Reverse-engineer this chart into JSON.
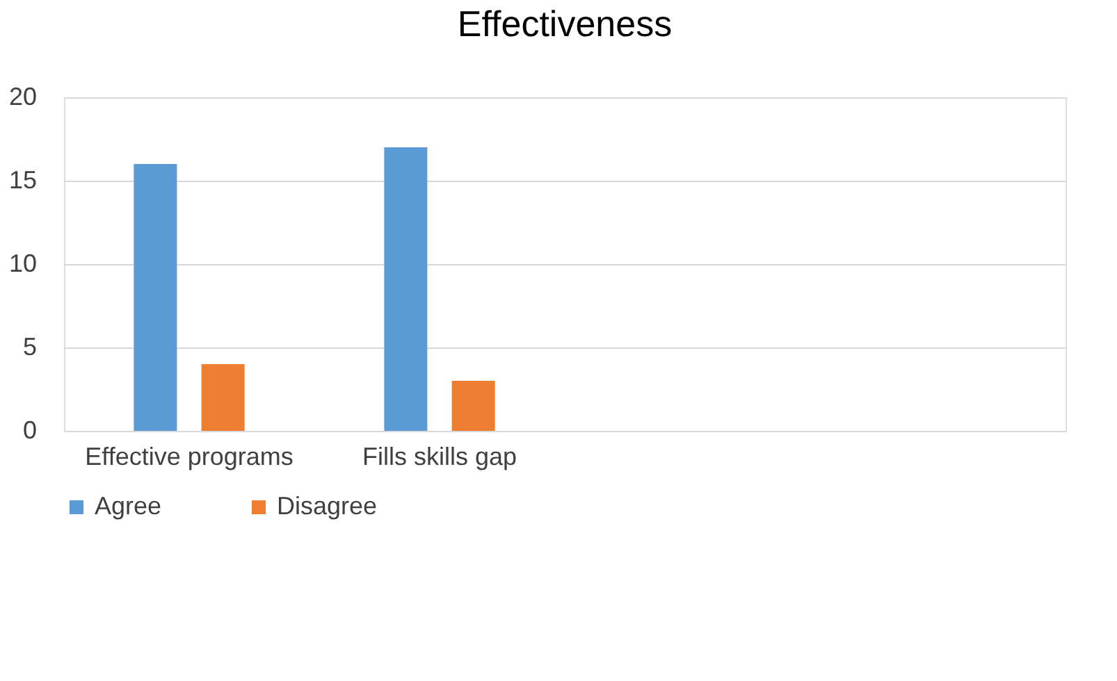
{
  "chart_data": {
    "type": "bar",
    "title": "Effectiveness",
    "categories": [
      "Effective programs",
      "Fills skills gap",
      null,
      null
    ],
    "series": [
      {
        "name": "Agree",
        "color": "#5b9bd5",
        "values": [
          16,
          17,
          null,
          null
        ]
      },
      {
        "name": "Disagree",
        "color": "#ed7d31",
        "values": [
          4,
          3,
          null,
          null
        ]
      }
    ],
    "ylim": [
      0,
      20
    ],
    "yticks": [
      0,
      5,
      10,
      15,
      20
    ],
    "grid": "y",
    "legend": "bottom"
  }
}
